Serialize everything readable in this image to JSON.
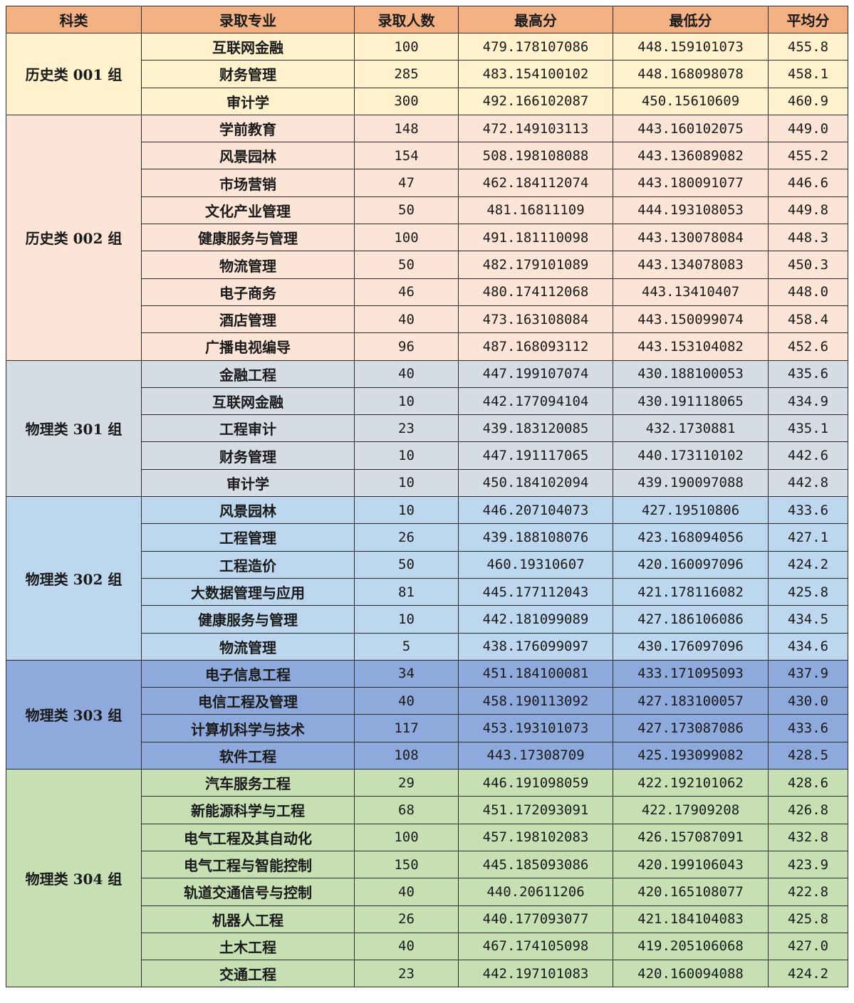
{
  "headers": [
    "科类",
    "录取专业",
    "录取人数",
    "最高分",
    "最低分",
    "平均分"
  ],
  "groups": [
    {
      "name": "历史类 001 组",
      "color": "#fff2cc",
      "rows": [
        [
          "互联网金融",
          "100",
          "479.178107086",
          "448.159101073",
          "455.8"
        ],
        [
          "财务管理",
          "285",
          "483.154100102",
          "448.168098078",
          "458.1"
        ],
        [
          "审计学",
          "300",
          "492.166102087",
          "450.15610609",
          "460.9"
        ]
      ]
    },
    {
      "name": "历史类 002 组",
      "color": "#fce4d6",
      "rows": [
        [
          "学前教育",
          "148",
          "472.149103113",
          "443.160102075",
          "449.0"
        ],
        [
          "风景园林",
          "154",
          "508.198108088",
          "443.136089082",
          "455.2"
        ],
        [
          "市场营销",
          "47",
          "462.184112074",
          "443.180091077",
          "446.6"
        ],
        [
          "文化产业管理",
          "50",
          "481.16811109",
          "444.193108053",
          "449.8"
        ],
        [
          "健康服务与管理",
          "100",
          "491.181110098",
          "443.130078084",
          "448.3"
        ],
        [
          "物流管理",
          "50",
          "482.179101089",
          "443.134078083",
          "450.3"
        ],
        [
          "电子商务",
          "46",
          "480.174112068",
          "443.13410407",
          "448.0"
        ],
        [
          "酒店管理",
          "40",
          "473.163108084",
          "443.150099074",
          "458.4"
        ],
        [
          "广播电视编导",
          "96",
          "487.168093112",
          "443.153104082",
          "452.6"
        ]
      ]
    },
    {
      "name": "物理类 301 组",
      "color": "#d6dce4",
      "rows": [
        [
          "金融工程",
          "40",
          "447.199107074",
          "430.188100053",
          "435.6"
        ],
        [
          "互联网金融",
          "10",
          "442.177094104",
          "430.191118065",
          "434.9"
        ],
        [
          "工程审计",
          "23",
          "439.183120085",
          "432.1730881",
          "435.1"
        ],
        [
          "财务管理",
          "10",
          "447.191117065",
          "440.173110102",
          "442.6"
        ],
        [
          "审计学",
          "10",
          "450.184102094",
          "439.190097088",
          "442.8"
        ]
      ]
    },
    {
      "name": "物理类 302 组",
      "color": "#bdd7ee",
      "rows": [
        [
          "风景园林",
          "10",
          "446.207104073",
          "427.19510806",
          "433.6"
        ],
        [
          "工程管理",
          "26",
          "439.188108076",
          "423.168094056",
          "427.1"
        ],
        [
          "工程造价",
          "50",
          "460.19310607",
          "420.160097096",
          "424.2"
        ],
        [
          "大数据管理与应用",
          "81",
          "445.177112043",
          "421.178116082",
          "425.8"
        ],
        [
          "健康服务与管理",
          "10",
          "442.181099089",
          "427.186106086",
          "434.5"
        ],
        [
          "物流管理",
          "5",
          "438.176099097",
          "430.176097096",
          "434.6"
        ]
      ]
    },
    {
      "name": "物理类 303 组",
      "color": "#8ea9db",
      "rows": [
        [
          "电子信息工程",
          "34",
          "451.184100081",
          "433.171095093",
          "437.9"
        ],
        [
          "电信工程及管理",
          "40",
          "458.190113092",
          "427.183100057",
          "430.0"
        ],
        [
          "计算机科学与技术",
          "117",
          "453.193101073",
          "427.173087086",
          "433.6"
        ],
        [
          "软件工程",
          "108",
          "443.17308709",
          "425.193099082",
          "428.5"
        ]
      ]
    },
    {
      "name": "物理类 304 组",
      "color": "#c6e0b4",
      "rows": [
        [
          "汽车服务工程",
          "29",
          "446.191098059",
          "422.192101062",
          "428.6"
        ],
        [
          "新能源科学与工程",
          "68",
          "451.172093091",
          "422.17909208",
          "426.8"
        ],
        [
          "电气工程及其自动化",
          "100",
          "457.198102083",
          "426.157087091",
          "432.8"
        ],
        [
          "电气工程与智能控制",
          "150",
          "445.185093086",
          "420.199106043",
          "423.9"
        ],
        [
          "轨道交通信号与控制",
          "40",
          "440.20611206",
          "420.165108077",
          "422.8"
        ],
        [
          "机器人工程",
          "26",
          "440.177093077",
          "421.184104083",
          "425.8"
        ],
        [
          "土木工程",
          "40",
          "467.174105098",
          "419.205106068",
          "427.0"
        ],
        [
          "交通工程",
          "23",
          "442.197101083",
          "420.160094088",
          "424.2"
        ]
      ]
    }
  ]
}
